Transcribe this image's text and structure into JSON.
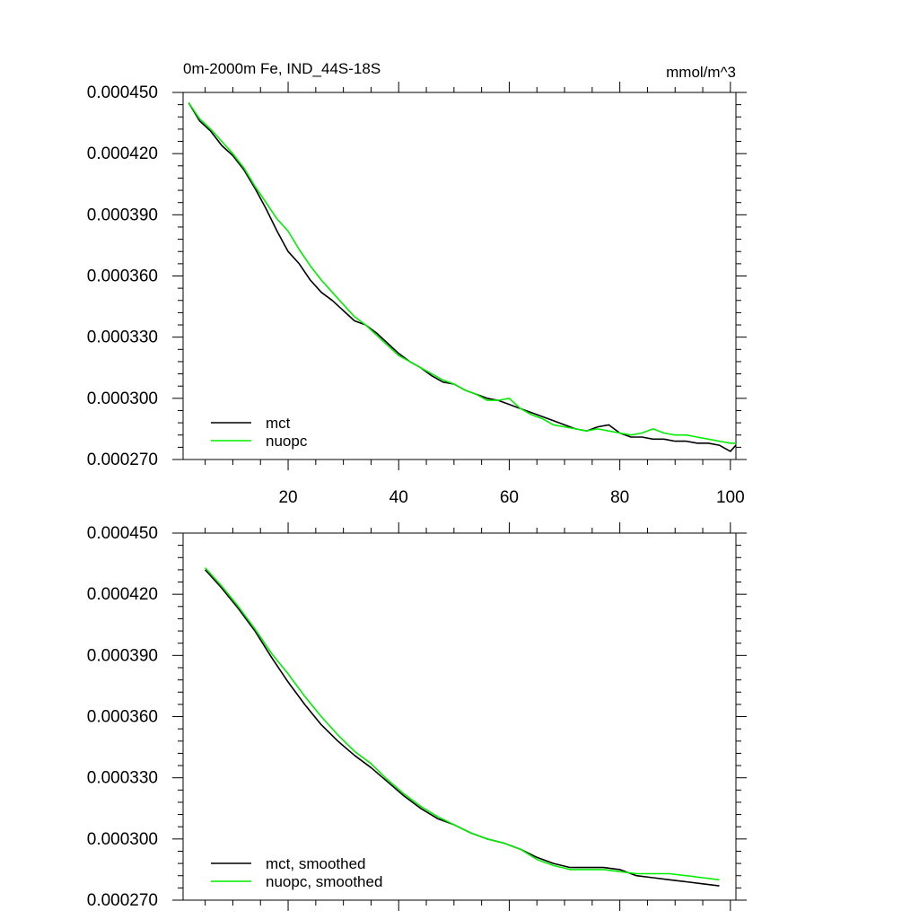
{
  "chart_data": [
    {
      "type": "line",
      "title": "0m-2000m Fe, IND_44S-18S",
      "units": "mmol/m^3",
      "xlim": [
        1,
        101
      ],
      "ylim": [
        0.00027,
        0.00045
      ],
      "x_ticks": [
        20,
        40,
        60,
        80,
        100
      ],
      "y_ticks": [
        "0.000270",
        "0.000300",
        "0.000330",
        "0.000360",
        "0.000390",
        "0.000420",
        "0.000450"
      ],
      "legend_position": "bottom-left",
      "series": [
        {
          "name": "mct",
          "color": "#000000",
          "x": [
            2,
            4,
            6,
            8,
            10,
            12,
            14,
            16,
            18,
            20,
            22,
            24,
            26,
            28,
            30,
            32,
            34,
            36,
            38,
            40,
            42,
            44,
            46,
            48,
            50,
            52,
            54,
            56,
            58,
            60,
            62,
            64,
            66,
            68,
            70,
            72,
            74,
            76,
            78,
            80,
            82,
            84,
            86,
            88,
            90,
            92,
            94,
            96,
            98,
            100,
            101
          ],
          "y": [
            0.000445,
            0.000436,
            0.000431,
            0.000424,
            0.000419,
            0.000412,
            0.000403,
            0.000393,
            0.000382,
            0.000372,
            0.000366,
            0.000358,
            0.000352,
            0.000348,
            0.000343,
            0.000338,
            0.000336,
            0.000332,
            0.000327,
            0.000322,
            0.000318,
            0.000315,
            0.000311,
            0.000308,
            0.000307,
            0.000304,
            0.000302,
            0.0003,
            0.000299,
            0.000297,
            0.000295,
            0.000293,
            0.000291,
            0.000289,
            0.000287,
            0.000285,
            0.000284,
            0.000286,
            0.000287,
            0.000283,
            0.000281,
            0.000281,
            0.00028,
            0.00028,
            0.000279,
            0.000279,
            0.000278,
            0.000278,
            0.000277,
            0.000274,
            0.000277
          ]
        },
        {
          "name": "nuopc",
          "color": "#00ee00",
          "x": [
            2,
            4,
            6,
            8,
            10,
            12,
            14,
            16,
            18,
            20,
            22,
            24,
            26,
            28,
            30,
            32,
            34,
            36,
            38,
            40,
            42,
            44,
            46,
            48,
            50,
            52,
            54,
            56,
            58,
            60,
            62,
            64,
            66,
            68,
            70,
            72,
            74,
            76,
            78,
            80,
            82,
            84,
            86,
            88,
            90,
            92,
            94,
            96,
            98,
            100,
            101
          ],
          "y": [
            0.000445,
            0.000437,
            0.000432,
            0.000426,
            0.00042,
            0.000413,
            0.000404,
            0.000396,
            0.000388,
            0.000382,
            0.000373,
            0.000365,
            0.000358,
            0.000352,
            0.000346,
            0.00034,
            0.000336,
            0.000331,
            0.000326,
            0.000321,
            0.000318,
            0.000315,
            0.000312,
            0.000309,
            0.000307,
            0.000304,
            0.000302,
            0.000299,
            0.000299,
            0.0003,
            0.000295,
            0.000292,
            0.00029,
            0.000287,
            0.000286,
            0.000285,
            0.000284,
            0.000285,
            0.000284,
            0.000283,
            0.000282,
            0.000283,
            0.000285,
            0.000283,
            0.000282,
            0.000282,
            0.000281,
            0.00028,
            0.000279,
            0.000278,
            0.000278
          ]
        }
      ]
    },
    {
      "type": "line",
      "xlim": [
        1,
        101
      ],
      "ylim": [
        0.00027,
        0.00045
      ],
      "y_ticks": [
        "0.000270",
        "0.000300",
        "0.000330",
        "0.000360",
        "0.000390",
        "0.000420",
        "0.000450"
      ],
      "legend_position": "bottom-left",
      "series": [
        {
          "name": "mct, smoothed",
          "color": "#000000",
          "x": [
            5,
            8,
            11,
            14,
            17,
            20,
            23,
            26,
            29,
            32,
            35,
            38,
            41,
            44,
            47,
            50,
            53,
            56,
            59,
            62,
            65,
            68,
            71,
            74,
            77,
            80,
            83,
            86,
            89,
            92,
            95,
            98
          ],
          "y": [
            0.000432,
            0.000423,
            0.000413,
            0.000402,
            0.000389,
            0.000377,
            0.000366,
            0.000356,
            0.000348,
            0.000341,
            0.000335,
            0.000328,
            0.000321,
            0.000315,
            0.00031,
            0.000307,
            0.000303,
            0.0003,
            0.000298,
            0.000295,
            0.000291,
            0.000288,
            0.000286,
            0.000286,
            0.000286,
            0.000285,
            0.000282,
            0.000281,
            0.00028,
            0.000279,
            0.000278,
            0.000277
          ]
        },
        {
          "name": "nuopc, smoothed",
          "color": "#00ee00",
          "x": [
            5,
            8,
            11,
            14,
            17,
            20,
            23,
            26,
            29,
            32,
            35,
            38,
            41,
            44,
            47,
            50,
            53,
            56,
            59,
            62,
            65,
            68,
            71,
            74,
            77,
            80,
            83,
            86,
            89,
            92,
            95,
            98
          ],
          "y": [
            0.000433,
            0.000424,
            0.000414,
            0.000403,
            0.000391,
            0.000381,
            0.00037,
            0.00036,
            0.000351,
            0.000343,
            0.000337,
            0.000329,
            0.000322,
            0.000316,
            0.000311,
            0.000307,
            0.000303,
            0.0003,
            0.000298,
            0.000295,
            0.00029,
            0.000287,
            0.000285,
            0.000285,
            0.000285,
            0.000284,
            0.000283,
            0.000283,
            0.000283,
            0.000282,
            0.000281,
            0.00028
          ]
        }
      ]
    }
  ]
}
